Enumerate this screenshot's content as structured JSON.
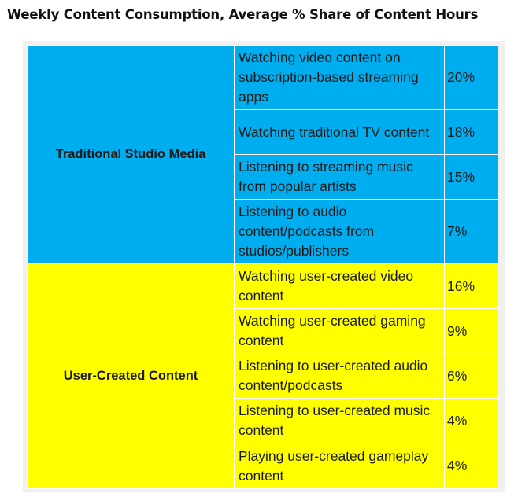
{
  "title": "Weekly Content Consumption, Average % Share of Content Hours",
  "chart_data": {
    "type": "table",
    "columns": [
      "category",
      "activity",
      "share"
    ],
    "groups": [
      {
        "category": "Traditional Studio Media",
        "color": "#00aeef",
        "rows": [
          {
            "activity": "Watching video content on subscription-based streaming apps",
            "share_label": "20%",
            "share": 20
          },
          {
            "activity": "Watching traditional TV content",
            "share_label": "18%",
            "share": 18
          },
          {
            "activity": "Listening to streaming music from popular artists",
            "share_label": "15%",
            "share": 15
          },
          {
            "activity": "Listening to audio content/podcasts from studios/publishers",
            "share_label": "7%",
            "share": 7
          }
        ]
      },
      {
        "category": "User-Created Content",
        "color": "#ffff00",
        "rows": [
          {
            "activity": "Watching user-created video content",
            "share_label": "16%",
            "share": 16
          },
          {
            "activity": "Watching user-created gaming content",
            "share_label": "9%",
            "share": 9
          },
          {
            "activity": "Listening to user-created audio content/podcasts",
            "share_label": "6%",
            "share": 6
          },
          {
            "activity": "Listening to user-created music content",
            "share_label": "4%",
            "share": 4
          },
          {
            "activity": "Playing user-created gameplay content",
            "share_label": "4%",
            "share": 4
          }
        ]
      }
    ]
  }
}
